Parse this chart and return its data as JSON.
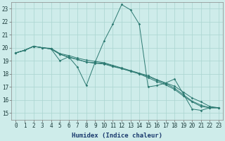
{
  "xlabel": "Humidex (Indice chaleur)",
  "x_values": [
    0,
    1,
    2,
    3,
    4,
    5,
    6,
    7,
    8,
    9,
    10,
    11,
    12,
    13,
    14,
    15,
    16,
    17,
    18,
    19,
    20,
    21,
    22,
    23
  ],
  "series1": [
    19.6,
    19.8,
    20.1,
    20.0,
    19.9,
    19.0,
    19.3,
    18.5,
    17.1,
    18.9,
    20.5,
    21.8,
    23.3,
    22.9,
    21.8,
    17.0,
    17.1,
    17.3,
    17.6,
    null,
    15.3,
    15.2,
    15.4,
    15.4
  ],
  "series2": [
    19.6,
    19.8,
    20.1,
    20.0,
    19.9,
    19.5,
    19.25,
    19.1,
    18.9,
    18.8,
    18.75,
    18.55,
    18.4,
    18.2,
    18.0,
    17.7,
    17.4,
    17.15,
    16.8,
    16.3,
    15.85,
    15.5,
    15.4,
    15.4
  ],
  "series3": [
    19.6,
    19.8,
    20.1,
    20.0,
    19.9,
    19.5,
    19.3,
    19.1,
    18.9,
    18.85,
    18.8,
    18.6,
    18.4,
    18.2,
    18.0,
    17.8,
    17.5,
    17.25,
    16.9,
    16.4,
    15.9,
    15.6,
    15.4,
    15.4
  ],
  "series4": [
    19.6,
    19.8,
    20.1,
    20.0,
    19.95,
    19.55,
    19.4,
    19.2,
    19.05,
    18.95,
    18.85,
    18.65,
    18.45,
    18.25,
    18.05,
    17.85,
    17.55,
    17.3,
    17.05,
    16.6,
    16.15,
    15.85,
    15.5,
    15.4
  ],
  "line_color": "#2d7a72",
  "bg_color": "#ceecea",
  "grid_color": "#aad4d0",
  "ylim": [
    14.5,
    23.5
  ],
  "yticks": [
    15,
    16,
    17,
    18,
    19,
    20,
    21,
    22,
    23
  ],
  "marker_size": 1.8,
  "linewidth": 0.7
}
